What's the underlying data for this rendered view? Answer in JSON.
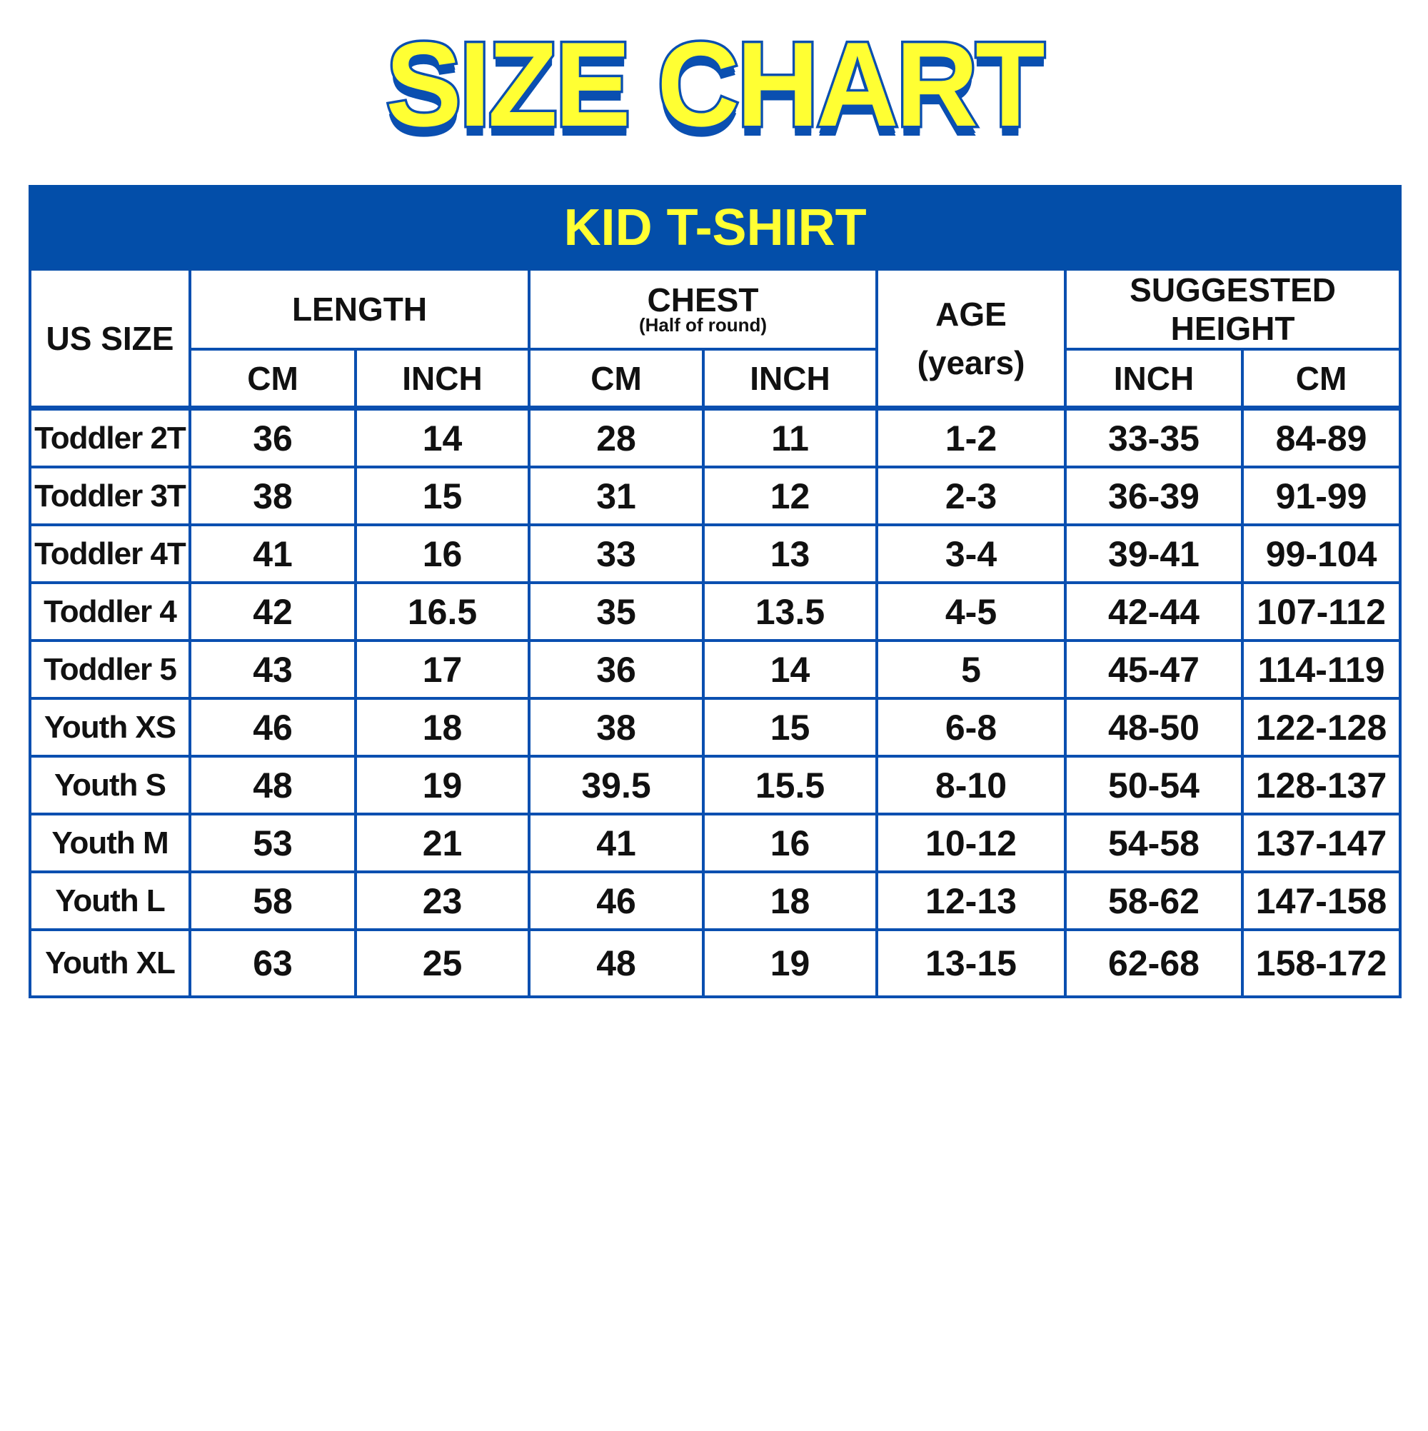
{
  "title": "SIZE CHART",
  "table": {
    "caption": "KID T-SHIRT",
    "headers": {
      "us_size": "US SIZE",
      "length": "LENGTH",
      "chest": "CHEST",
      "chest_note": "(Half of round)",
      "age": "AGE",
      "age_unit": "(years)",
      "height": "SUGGESTED HEIGHT",
      "length_cm": "CM",
      "length_inch": "INCH",
      "chest_cm": "CM",
      "chest_inch": "INCH",
      "height_inch": "INCH",
      "height_cm": "CM"
    },
    "rows": [
      [
        "Toddler 2T",
        "36",
        "14",
        "28",
        "11",
        "1-2",
        "33-35",
        "84-89"
      ],
      [
        "Toddler 3T",
        "38",
        "15",
        "31",
        "12",
        "2-3",
        "36-39",
        "91-99"
      ],
      [
        "Toddler 4T",
        "41",
        "16",
        "33",
        "13",
        "3-4",
        "39-41",
        "99-104"
      ],
      [
        "Toddler 4",
        "42",
        "16.5",
        "35",
        "13.5",
        "4-5",
        "42-44",
        "107-112"
      ],
      [
        "Toddler 5",
        "43",
        "17",
        "36",
        "14",
        "5",
        "45-47",
        "114-119"
      ],
      [
        "Youth XS",
        "46",
        "18",
        "38",
        "15",
        "6-8",
        "48-50",
        "122-128"
      ],
      [
        "Youth S",
        "48",
        "19",
        "39.5",
        "15.5",
        "8-10",
        "50-54",
        "128-137"
      ],
      [
        "Youth M",
        "53",
        "21",
        "41",
        "16",
        "10-12",
        "54-58",
        "137-147"
      ],
      [
        "Youth L",
        "58",
        "23",
        "46",
        "18",
        "12-13",
        "58-62",
        "147-158"
      ],
      [
        "Youth XL",
        "63",
        "25",
        "48",
        "19",
        "13-15",
        "62-68",
        "158-172"
      ]
    ]
  },
  "colors": {
    "blue": "#034ea9",
    "yellow": "#ffff33",
    "border": "#0a4fb0"
  }
}
